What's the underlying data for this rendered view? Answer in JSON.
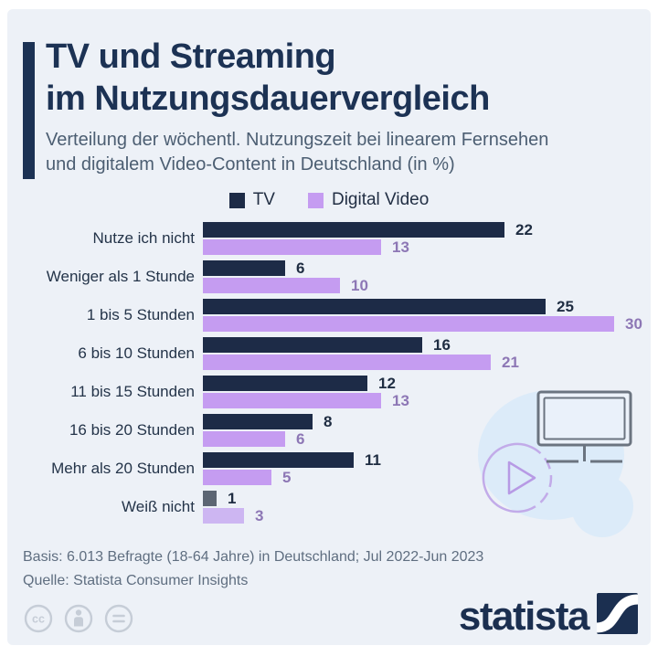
{
  "header": {
    "title_line1": "TV und Streaming",
    "title_line2": "im Nutzungsdauervergleich",
    "subtitle_line1": "Verteilung der wöchentl. Nutzungszeit bei linearem Fernsehen",
    "subtitle_line2": "und digitalem Video-Content in Deutschland (in %)"
  },
  "chart_data": {
    "type": "bar",
    "orientation": "horizontal",
    "title": "TV und Streaming im Nutzungsdauervergleich",
    "xlim": [
      0,
      30
    ],
    "grid": false,
    "legend_position": "top-center",
    "value_labels": true,
    "categories": [
      "Nutze ich nicht",
      "Weniger als 1 Stunde",
      "1 bis 5 Stunden",
      "6 bis 10 Stunden",
      "11 bis 15 Stunden",
      "16 bis 20 Stunden",
      "Mehr als 20 Stunden",
      "Weiß nicht"
    ],
    "series": [
      {
        "name": "TV",
        "color": "#1d2b47",
        "muted_color": "#5c6573",
        "value_color": "#1f2d42",
        "values": [
          22,
          6,
          25,
          16,
          12,
          8,
          11,
          1
        ]
      },
      {
        "name": "Digital Video",
        "color": "#c59cf1",
        "muted_color": "#cdb6f2",
        "value_color": "#8d77b5",
        "values": [
          13,
          10,
          30,
          21,
          13,
          6,
          5,
          3
        ]
      }
    ],
    "muted_category_index": 7
  },
  "footer": {
    "basis": "Basis: 6.013 Befragte (18-64 Jahre) in Deutschland; Jul 2022-Jun 2023",
    "quelle": "Quelle: Statista Consumer Insights"
  },
  "branding": {
    "logo_text": "statista",
    "license_icons": [
      "cc-icon",
      "attribution-icon",
      "equals-icon"
    ]
  },
  "colors": {
    "canvas_bg": "#edf1f7",
    "frame_bg": "#ffffff",
    "title_navy": "#1c3254",
    "subtitle_gray": "#4c5e72",
    "footer_gray": "#5f6e80",
    "license_gray": "#c6cdd7",
    "illustration_blob": "#dcebf9",
    "monitor_stroke": "#6b7480",
    "play_stroke": "#c2abe9"
  }
}
